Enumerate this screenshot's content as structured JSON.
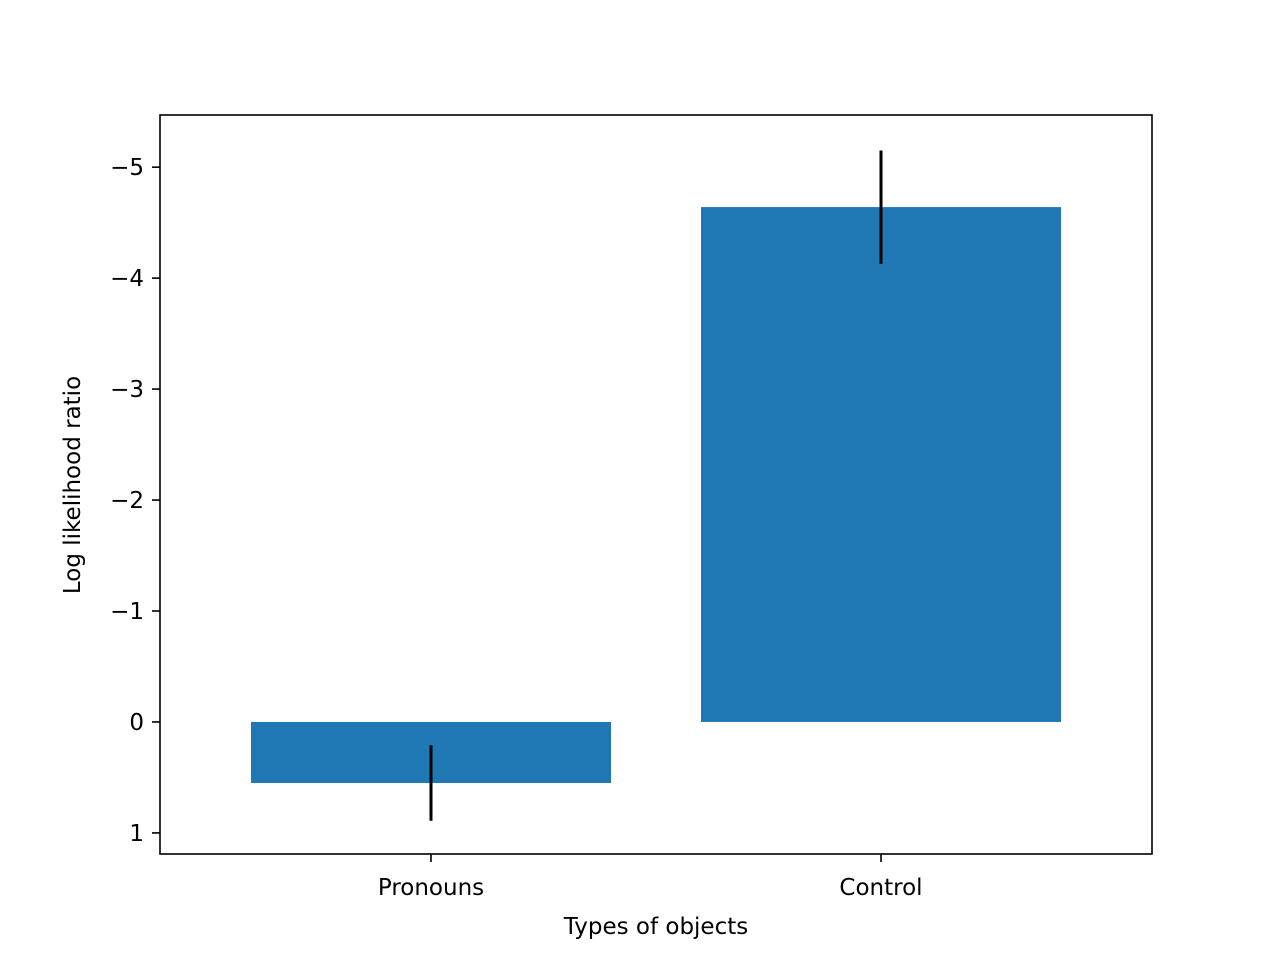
{
  "chart_data": {
    "type": "bar",
    "title": "",
    "xlabel": "Types of objects",
    "ylabel": "Log likelihood ratio",
    "categories": [
      "Pronouns",
      "Control"
    ],
    "values": [
      0.55,
      -4.64
    ],
    "errors": [
      0.34,
      0.51
    ],
    "ylim": [
      1.19,
      -5.47
    ],
    "y_inverted": true,
    "yticks": [
      1,
      0,
      -1,
      -2,
      -3,
      -4,
      -5
    ],
    "ytick_labels": [
      "1",
      "0",
      "−1",
      "−2",
      "−3",
      "−4",
      "−5"
    ],
    "grid": false,
    "legend": "none",
    "colors": {
      "bar": "#1f77b4",
      "error_bar": "#000000",
      "axis": "#000000"
    }
  }
}
